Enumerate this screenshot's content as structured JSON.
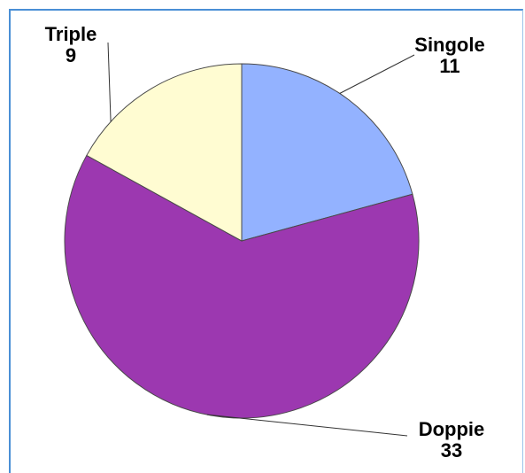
{
  "colors": {
    "frame_border": "#4a8fd6",
    "slice_outline": "#4a4a4a",
    "leader_line": "#333333"
  },
  "chart_data": {
    "type": "pie",
    "title": "",
    "start_angle_deg": 0,
    "direction": "clockwise",
    "legend": "none",
    "slices": [
      {
        "label": "Singole",
        "value": 11,
        "value_label": "11",
        "color": "#93b2ff"
      },
      {
        "label": "Doppie",
        "value": 33,
        "value_label": "33",
        "color": "#9c38b0"
      },
      {
        "label": "Triple",
        "value": 9,
        "value_label": "9",
        "color": "#fffcd2"
      }
    ]
  }
}
